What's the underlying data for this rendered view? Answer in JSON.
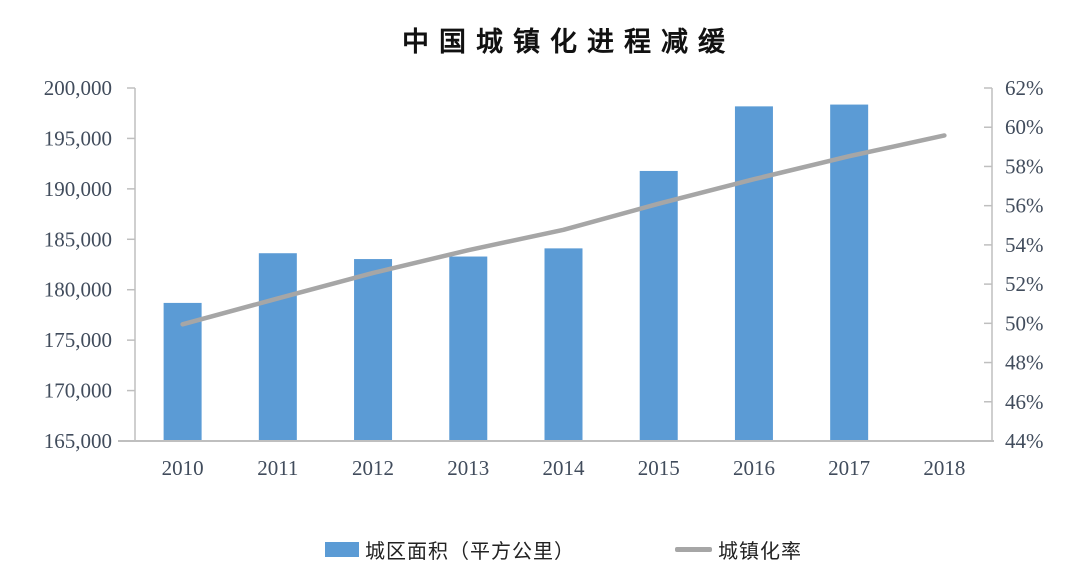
{
  "title": "中国城镇化进程减缓",
  "legend": {
    "items": [
      {
        "label": "城区面积（平方公里）",
        "swatch": "bar",
        "color": "#5B9BD5"
      },
      {
        "label": "城镇化率",
        "swatch": "line",
        "color": "#A6A6A6"
      }
    ]
  },
  "chart_data": {
    "type": "combo",
    "title": "中国城镇化进程减缓",
    "categories": [
      "2010",
      "2011",
      "2012",
      "2013",
      "2014",
      "2015",
      "2016",
      "2017",
      "2018"
    ],
    "series": [
      {
        "name": "城区面积（平方公里）",
        "type": "bar",
        "axis": "left",
        "color": "#5B9BD5",
        "values": [
          178692,
          183618,
          183039,
          183290,
          184099,
          191776,
          198179,
          198357,
          null
        ]
      },
      {
        "name": "城镇化率",
        "type": "line",
        "axis": "right",
        "color": "#A6A6A6",
        "values": [
          49.95,
          51.27,
          52.57,
          53.73,
          54.77,
          56.1,
          57.35,
          58.52,
          59.58
        ]
      }
    ],
    "left_axis": {
      "min": 165000,
      "max": 200000,
      "step": 5000,
      "tick_format": "#,##0"
    },
    "right_axis": {
      "min": 44,
      "max": 62,
      "step": 2,
      "tick_format": "0%"
    },
    "grid": false,
    "legend_position": "bottom"
  },
  "colors": {
    "axis_line": "#BFBFBF",
    "tick_label": "#414C5C",
    "background": "#FFFFFF"
  }
}
